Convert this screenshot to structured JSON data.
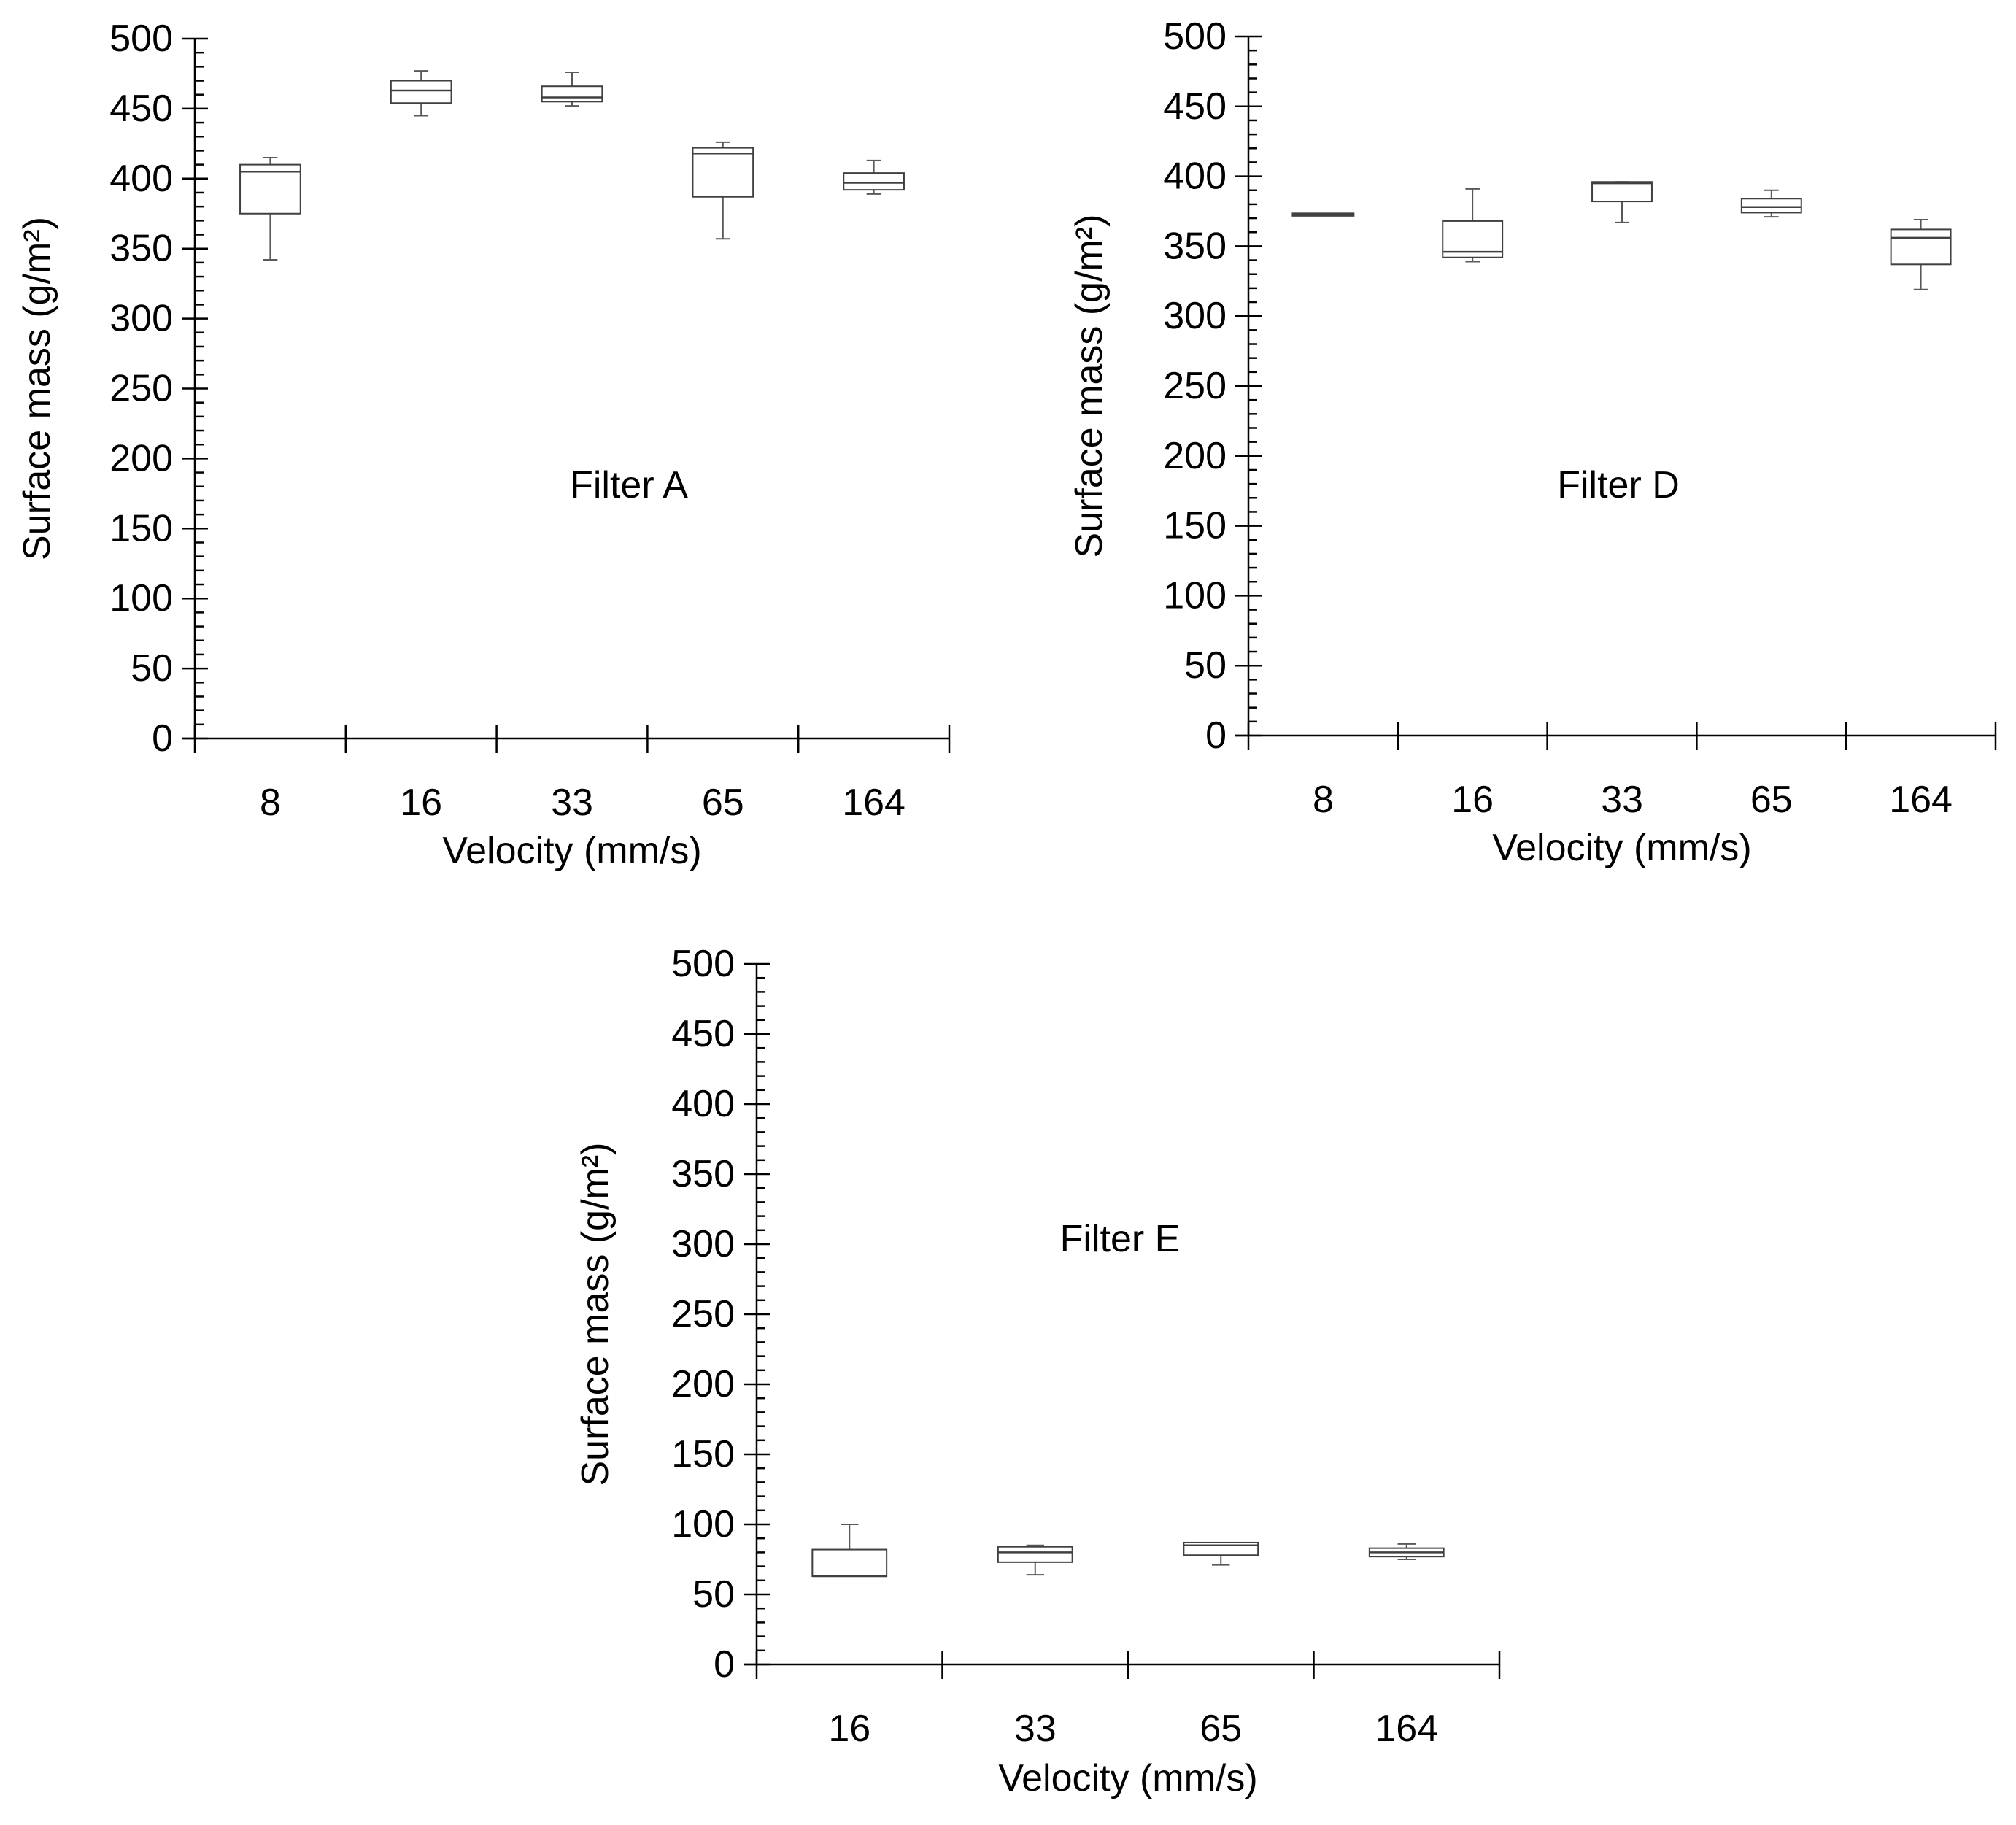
{
  "chart_data": [
    {
      "id": "A",
      "type": "box",
      "title": "Filter A",
      "xlabel": "Velocity (mm/s)",
      "ylabel": "Surface mass (g/m²)",
      "ylim": [
        0,
        500
      ],
      "yticks": [
        0,
        50,
        100,
        150,
        200,
        250,
        300,
        350,
        400,
        450,
        500
      ],
      "categories": [
        "8",
        "16",
        "33",
        "65",
        "164"
      ],
      "boxes": [
        {
          "category": "8",
          "min": 342,
          "q1": 375,
          "median": 405,
          "q3": 410,
          "max": 415
        },
        {
          "category": "16",
          "min": 445,
          "q1": 454,
          "median": 463,
          "q3": 470,
          "max": 477
        },
        {
          "category": "33",
          "min": 452,
          "q1": 455,
          "median": 458,
          "q3": 466,
          "max": 476
        },
        {
          "category": "65",
          "min": 357,
          "q1": 387,
          "median": 418,
          "q3": 422,
          "max": 426
        },
        {
          "category": "164",
          "min": 389,
          "q1": 392,
          "median": 397,
          "q3": 404,
          "max": 413
        }
      ]
    },
    {
      "id": "D",
      "type": "box",
      "title": "Filter D",
      "xlabel": "Velocity (mm/s)",
      "ylabel": "Surface mass (g/m²)",
      "ylim": [
        0,
        500
      ],
      "yticks": [
        0,
        50,
        100,
        150,
        200,
        250,
        300,
        350,
        400,
        450,
        500
      ],
      "categories": [
        "8",
        "16",
        "33",
        "65",
        "164"
      ],
      "boxes": [
        {
          "category": "8",
          "min": 373,
          "q1": 373,
          "median": 373,
          "q3": 373,
          "max": 373
        },
        {
          "category": "16",
          "min": 339,
          "q1": 342,
          "median": 346,
          "q3": 368,
          "max": 391
        },
        {
          "category": "33",
          "min": 367,
          "q1": 382,
          "median": 395,
          "q3": 396,
          "max": 396
        },
        {
          "category": "65",
          "min": 371,
          "q1": 374,
          "median": 378,
          "q3": 384,
          "max": 390
        },
        {
          "category": "164",
          "min": 319,
          "q1": 337,
          "median": 356,
          "q3": 362,
          "max": 369
        }
      ]
    },
    {
      "id": "E",
      "type": "box",
      "title": "Filter E",
      "xlabel": "Velocity (mm/s)",
      "ylabel": "Surface mass (g/m²)",
      "ylim": [
        0,
        500
      ],
      "yticks": [
        0,
        50,
        100,
        150,
        200,
        250,
        300,
        350,
        400,
        450,
        500
      ],
      "categories": [
        "16",
        "33",
        "65",
        "164"
      ],
      "boxes": [
        {
          "category": "16",
          "min": 63,
          "q1": 63,
          "median": 63,
          "q3": 82,
          "max": 100
        },
        {
          "category": "33",
          "min": 64,
          "q1": 73,
          "median": 80,
          "q3": 84,
          "max": 85
        },
        {
          "category": "65",
          "min": 71,
          "q1": 78,
          "median": 85,
          "q3": 87,
          "max": 87
        },
        {
          "category": "164",
          "min": 75,
          "q1": 77,
          "median": 80,
          "q3": 83,
          "max": 86
        }
      ]
    }
  ]
}
